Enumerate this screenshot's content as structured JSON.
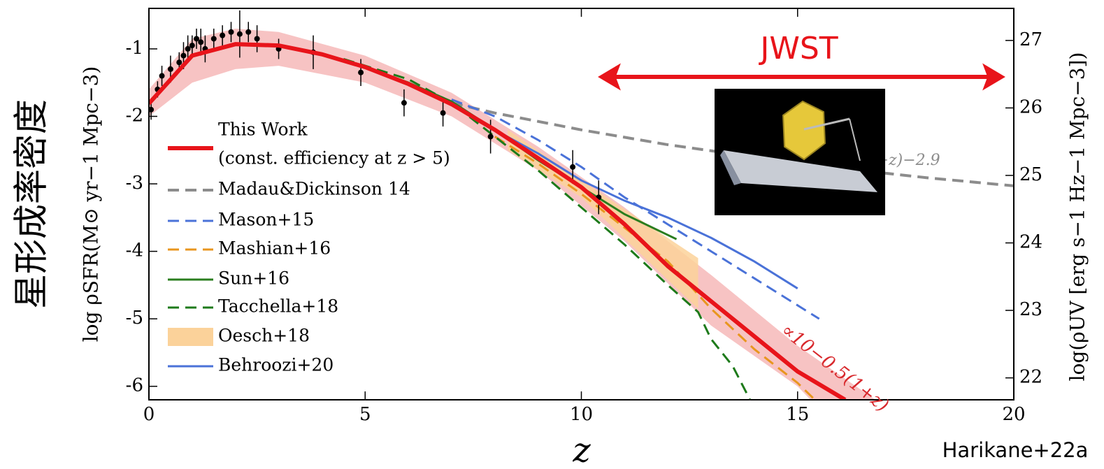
{
  "chart_data": {
    "type": "line",
    "side_label": "星形成率密度",
    "ylabel": "log ρSFR(M⊙ yr−1 Mpc−3)",
    "y2label": "log(ρUV [erg s−1 Hz−1 Mpc−3])",
    "xlabel": "z",
    "annotations": {
      "jwst": "JWST",
      "credit": "Harikane+22a",
      "slope": "∝10−0.5(1+z)",
      "md_slope": "(1+z)−2.9"
    },
    "legend_note": "(const. efficiency at z > 5)",
    "xlim": [
      0,
      20
    ],
    "xticks": [
      0,
      5,
      10,
      15,
      20
    ],
    "ylim": [
      -6.2,
      -0.4
    ],
    "yticks": [
      -6,
      -5,
      -4,
      -3,
      -2,
      -1
    ],
    "y2lim": [
      21.675,
      27.475
    ],
    "y2ticks": [
      22,
      23,
      24,
      25,
      26,
      27
    ],
    "series": [
      {
        "name": "This Work",
        "kind": "band",
        "legend": false,
        "color": "#f6b8b8",
        "x": [
          0,
          1,
          2,
          3,
          5,
          7,
          9,
          11,
          13,
          15,
          16.8
        ],
        "upper": [
          -1.6,
          -0.85,
          -0.7,
          -0.75,
          -1.1,
          -1.65,
          -2.45,
          -3.35,
          -4.35,
          -5.4,
          -6.2
        ],
        "x_lower": [
          0,
          1,
          2,
          3,
          5,
          7,
          9,
          11,
          13,
          15,
          15.3
        ],
        "lower": [
          -2.0,
          -1.5,
          -1.3,
          -1.25,
          -1.5,
          -2.0,
          -2.8,
          -3.85,
          -5.1,
          -6.0,
          -6.2
        ]
      },
      {
        "name": "Oesch+18",
        "kind": "band",
        "color": "#fbd29a",
        "x": [
          8.3,
          10,
          12.7
        ],
        "upper": [
          -2.2,
          -2.95,
          -4.1
        ],
        "x_lower": [
          8.3,
          10,
          12.7
        ],
        "lower": [
          -2.5,
          -3.2,
          -4.85
        ]
      },
      {
        "name": "Madau&Dickinson 14",
        "kind": "line",
        "dash": true,
        "width": 4,
        "color": "#8c8c8c",
        "x": [
          7,
          8,
          10,
          12,
          14,
          16,
          18,
          20
        ],
        "values": [
          -1.8,
          -1.95,
          -2.2,
          -2.42,
          -2.6,
          -2.77,
          -2.91,
          -3.03
        ]
      },
      {
        "name": "Mason+15",
        "kind": "line",
        "dash": true,
        "width": 3,
        "color": "#4a72d8",
        "x": [
          7,
          8,
          9,
          10,
          11,
          12,
          13,
          14,
          15,
          15.5
        ],
        "values": [
          -1.75,
          -2.0,
          -2.35,
          -2.75,
          -3.2,
          -3.6,
          -4.0,
          -4.4,
          -4.8,
          -5.0
        ]
      },
      {
        "name": "Mashian+16",
        "kind": "line",
        "dash": true,
        "width": 3,
        "color": "#e8961e",
        "x": [
          8,
          9,
          10,
          11,
          12,
          13,
          14,
          15,
          15.4
        ],
        "values": [
          -2.3,
          -2.7,
          -3.15,
          -3.65,
          -4.15,
          -4.85,
          -5.45,
          -5.95,
          -6.2
        ]
      },
      {
        "name": "Sun+16",
        "kind": "line",
        "dash": false,
        "width": 3,
        "color": "#2a7d1e",
        "x": [
          5,
          6,
          7,
          8,
          9,
          10,
          11,
          12.2
        ],
        "values": [
          -1.27,
          -1.5,
          -1.78,
          -2.2,
          -2.65,
          -3.05,
          -3.45,
          -3.82
        ]
      },
      {
        "name": "Tacchella+18",
        "kind": "line",
        "dash": true,
        "width": 3,
        "color": "#1d7a1a",
        "x": [
          4.5,
          6,
          7,
          8,
          9,
          10,
          11,
          12,
          12.7,
          13,
          13.5,
          13.9
        ],
        "values": [
          -1.15,
          -1.45,
          -1.8,
          -2.3,
          -2.8,
          -3.35,
          -3.9,
          -4.5,
          -4.9,
          -5.3,
          -5.7,
          -6.2
        ]
      },
      {
        "name": "Behroozi+20",
        "kind": "line",
        "dash": false,
        "width": 3,
        "color": "#4a72d8",
        "x": [
          8,
          9,
          10,
          11,
          12,
          13,
          14,
          15
        ],
        "values": [
          -2.2,
          -2.55,
          -2.95,
          -3.25,
          -3.5,
          -3.8,
          -4.15,
          -4.55
        ]
      },
      {
        "name": "This Work",
        "kind": "line",
        "dash": false,
        "width": 6,
        "color": "#e8141a",
        "x": [
          0,
          1,
          2,
          3,
          4,
          5,
          6,
          7,
          8,
          9,
          10,
          11,
          12,
          13,
          14,
          15,
          16.1
        ],
        "values": [
          -1.81,
          -1.1,
          -0.93,
          -0.95,
          -1.08,
          -1.27,
          -1.52,
          -1.82,
          -2.2,
          -2.62,
          -3.05,
          -3.6,
          -4.22,
          -4.74,
          -5.26,
          -5.78,
          -6.2
        ]
      }
    ],
    "legend_order": [
      8,
      2,
      3,
      4,
      5,
      6,
      1,
      7
    ],
    "points": {
      "color": "#000",
      "x": [
        0.05,
        0.2,
        0.3,
        0.5,
        0.7,
        0.8,
        0.9,
        1.0,
        1.1,
        1.2,
        1.3,
        1.5,
        1.7,
        1.9,
        2.1,
        2.3,
        2.5,
        3.0,
        3.8,
        4.9,
        5.9,
        6.8,
        7.9,
        9.8,
        10.4
      ],
      "y": [
        -1.9,
        -1.6,
        -1.4,
        -1.3,
        -1.2,
        -1.1,
        -1.0,
        -0.95,
        -0.85,
        -0.9,
        -1.0,
        -0.85,
        -0.8,
        -0.75,
        -0.78,
        -0.75,
        -0.85,
        -1.0,
        -1.05,
        -1.35,
        -1.8,
        -1.95,
        -2.3,
        -2.75,
        -3.2
      ],
      "err": [
        0.15,
        0.12,
        0.15,
        0.2,
        0.15,
        0.2,
        0.2,
        0.15,
        0.15,
        0.2,
        0.2,
        0.15,
        0.15,
        0.15,
        0.35,
        0.15,
        0.2,
        0.15,
        0.25,
        0.2,
        0.2,
        0.2,
        0.25,
        0.25,
        0.25
      ]
    }
  }
}
